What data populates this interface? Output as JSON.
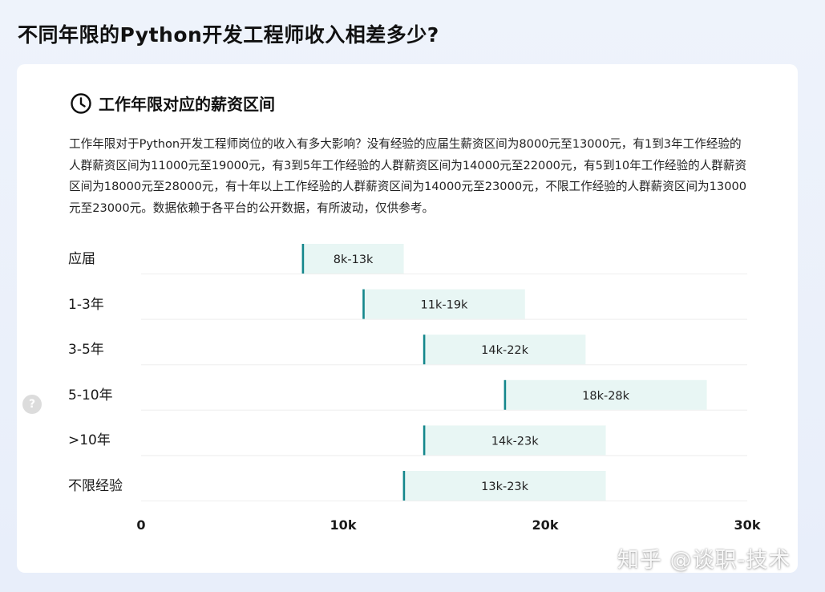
{
  "page_title": "不同年限的Python开发工程师收入相差多少?",
  "section": {
    "title": "工作年限对应的薪资区间",
    "icon": "clock-icon",
    "description": "工作年限对于Python开发工程师岗位的收入有多大影响？没有经验的应届生薪资区间为8000元至13000元，有1到3年工作经验的人群薪资区间为11000元至19000元，有3到5年工作经验的人群薪资区间为14000元至22000元，有5到10年工作经验的人群薪资区间为18000元至28000元，有十年以上工作经验的人群薪资区间为14000元至23000元，不限工作经验的人群薪资区间为13000元至23000元。数据依赖于各平台的公开数据，有所波动，仅供参考。"
  },
  "help_icon": {
    "icon": "question-icon",
    "glyph": "?"
  },
  "watermark": "知乎 @谈职-技术",
  "colors": {
    "bar_fill": "#e8f6f4",
    "bar_marker": "#14878c",
    "grid": "#eeeeee"
  },
  "chart_data": {
    "type": "bar",
    "orientation": "horizontal-range",
    "categories": [
      "应届",
      "1-3年",
      "3-5年",
      "5-10年",
      ">10年",
      "不限经验"
    ],
    "ranges": [
      [
        8000,
        13000
      ],
      [
        11000,
        19000
      ],
      [
        14000,
        22000
      ],
      [
        18000,
        28000
      ],
      [
        14000,
        23000
      ],
      [
        13000,
        23000
      ]
    ],
    "data_labels": [
      "8k-13k",
      "11k-19k",
      "14k-22k",
      "18k-28k",
      "14k-23k",
      "13k-23k"
    ],
    "xlim": [
      0,
      30000
    ],
    "x_ticks": [
      0,
      10000,
      20000,
      30000
    ],
    "x_tick_labels": [
      "0",
      "10k",
      "20k",
      "30k"
    ],
    "xlabel": "",
    "ylabel": "",
    "title": ""
  }
}
